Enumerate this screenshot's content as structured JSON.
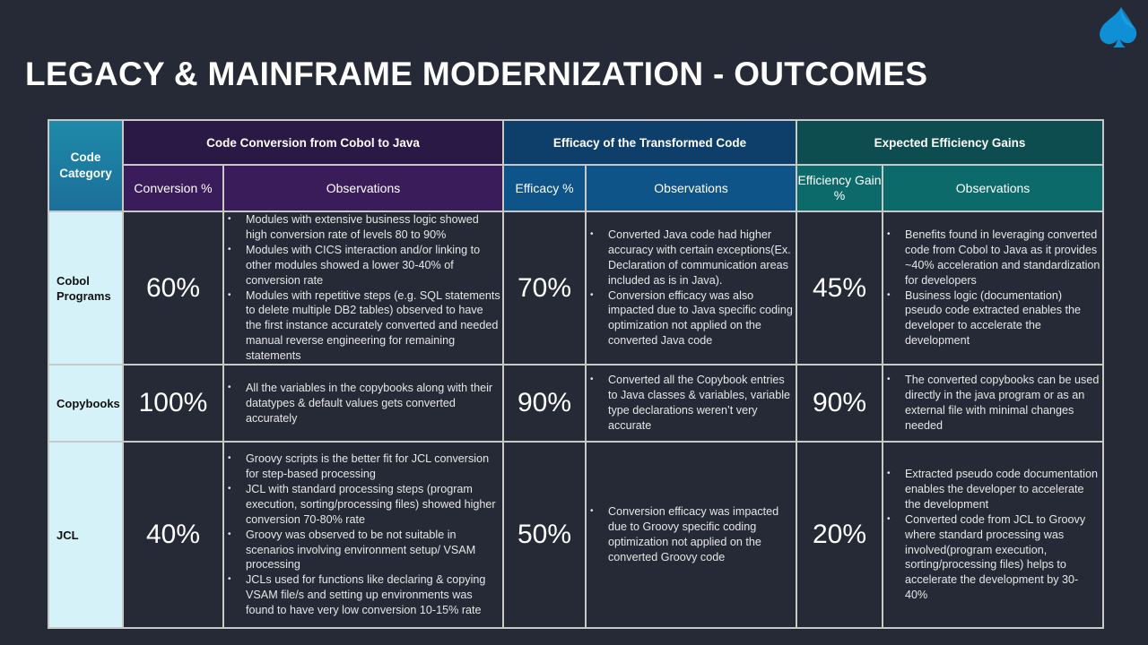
{
  "title": "LEGACY & MAINFRAME MODERNIZATION - OUTCOMES",
  "logo_icon": "spade-logo-icon",
  "colors": {
    "background": "#262a36",
    "category_column": "#d4f2f8",
    "group1": "#2a1845",
    "group2": "#0e3f6b",
    "group3": "#0d4d4f",
    "logo": "#0f8fd6"
  },
  "table": {
    "category_header": "Code Category",
    "groups": [
      {
        "label": "Code Conversion from Cobol to Java"
      },
      {
        "label": "Efficacy of the Transformed Code"
      },
      {
        "label": "Expected Efficiency Gains"
      }
    ],
    "subheaders": [
      "Conversion %",
      "Observations",
      "Efficacy %",
      "Observations",
      "Efficiency Gain %",
      "Observations"
    ],
    "rows": [
      {
        "category": "Cobol Programs",
        "conversion": "60%",
        "conversion_obs": [
          "Modules with extensive business logic showed high conversion rate of levels 80 to 90%",
          "Modules with CICS interaction and/or linking to other modules showed a lower 30-40% of conversion rate",
          "Modules with repetitive steps (e.g. SQL statements to delete multiple DB2 tables) observed to have the first instance accurately converted and needed manual reverse engineering for remaining statements"
        ],
        "efficacy": "70%",
        "efficacy_obs": [
          "Converted Java code had higher accuracy with certain exceptions(Ex. Declaration of communication areas included as is in Java).",
          "Conversion efficacy was also impacted due to Java specific coding optimization not applied on the converted Java code"
        ],
        "gain": "45%",
        "gain_obs": [
          "Benefits found in leveraging converted code from Cobol to Java as it provides ~40% acceleration and standardization for developers",
          "Business logic (documentation) pseudo code extracted enables the developer to accelerate the development"
        ]
      },
      {
        "category": "Copybooks",
        "conversion": "100%",
        "conversion_obs": [
          "All the variables in the copybooks along with their datatypes & default values gets converted accurately"
        ],
        "efficacy": "90%",
        "efficacy_obs": [
          "Converted all the Copybook entries to Java  classes & variables, variable type declarations weren’t very accurate"
        ],
        "gain": "90%",
        "gain_obs": [
          "The converted copybooks can be used directly in the java program or as an external file with minimal changes needed"
        ]
      },
      {
        "category": "JCL",
        "conversion": "40%",
        "conversion_obs": [
          "Groovy scripts is the better fit for JCL conversion for step-based processing",
          "JCL with standard processing steps (program execution, sorting/processing files) showed higher conversion 70-80% rate",
          "Groovy was observed to be not suitable in scenarios involving environment setup/ VSAM processing",
          "JCLs used for functions like declaring & copying VSAM file/s  and setting up environments was found to have very low conversion 10-15% rate"
        ],
        "efficacy": "50%",
        "efficacy_obs": [
          "Conversion efficacy was impacted due to Groovy specific coding optimization not applied on the converted Groovy code"
        ],
        "gain": "20%",
        "gain_obs": [
          "Extracted pseudo code documentation enables the developer to accelerate the development",
          "Converted code from JCL to Groovy where standard processing was involved(program execution, sorting/processing files) helps to accelerate the development by 30-40%"
        ]
      }
    ]
  }
}
